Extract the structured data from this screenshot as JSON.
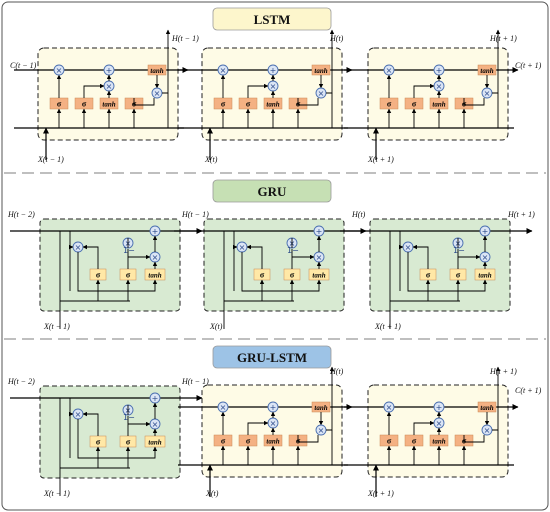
{
  "colors": {
    "lstm_banner": "#fdf6cc",
    "gru_banner": "#c6e0b4",
    "grulstm_banner": "#9dc3e6",
    "lstm_cell_fill": "#fefbe6",
    "gru_cell_fill": "#d8ead2",
    "gate_orange": "#f4b183",
    "gate_yellow": "#ffe8a6",
    "operator_fill": "#dbe5f5",
    "operator_stroke": "#4a6fb0"
  },
  "sections": {
    "lstm": {
      "title": "LSTM",
      "labels": {
        "h_top_0": "H(t − 1)",
        "h_top_1": "H(t)",
        "h_top_2": "H(t + 1)",
        "c_left": "C(t − 1)",
        "c_right": "C(t + 1)",
        "x_0": "X(t − 1)",
        "x_1": "X(t)",
        "x_2": "X(t + 1)"
      }
    },
    "gru": {
      "title": "GRU",
      "labels": {
        "h_0": "H(t − 2)",
        "h_1": "H(t − 1)",
        "h_2": "H(t)",
        "h_3": "H(t + 1)",
        "x_0": "X(t − 1)",
        "x_1": "X(t)",
        "x_2": "X(t + 1)"
      }
    },
    "grulstm": {
      "title": "GRU-LSTM",
      "labels": {
        "h_0": "H(t − 2)",
        "h_1": "H(t − 1)",
        "h_top_1": "H(t)",
        "h_top_2": "H(t + 1)",
        "c_right": "C(t + 1)",
        "x_0": "X(t − 1)",
        "x_1": "X(t)",
        "x_2": "X(t + 1)"
      }
    }
  },
  "gates": {
    "sigma": "σ",
    "tanh": "tanh",
    "one_minus": "1−"
  },
  "operators": {
    "multiply": "×",
    "add": "+"
  }
}
